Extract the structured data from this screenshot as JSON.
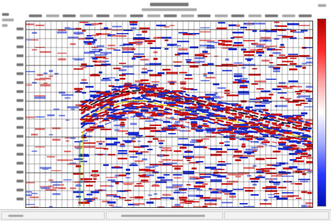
{
  "colors": {
    "background": "#ffffff",
    "positive_amplitude": "#cc1414",
    "positive_amplitude_light": "#e27272",
    "negative_amplitude": "#1a2cd0",
    "negative_amplitude_light": "#7482e6",
    "trace_line": "#1a1a1a",
    "horizon_pick_primary": "#ffffff",
    "horizon_pick_secondary": "#e6d200",
    "well_marker": "#2fa02f",
    "status_bar": "#ececec"
  },
  "colorbar": {
    "gradient": [
      "#b00000",
      "#ff2a2a",
      "#ffa0a0",
      "#ffffff",
      "#a0a8ff",
      "#2a3aff",
      "#0010b0"
    ]
  },
  "display": {
    "grid": true
  }
}
